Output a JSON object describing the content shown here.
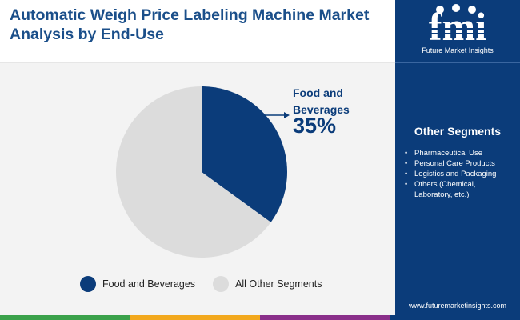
{
  "header": {
    "title": "Automatic Weigh Price Labeling Machine Market Analysis by End-Use"
  },
  "brand": {
    "logo_letters": "fmi",
    "name": "Future Market Insights",
    "website": "www.futuremarketinsights.com"
  },
  "sidebar": {
    "title": "Other Segments",
    "items": [
      "Pharmaceutical Use",
      "Personal Care Products",
      "Logistics and Packaging",
      "Others (Chemical, Laboratory, etc.)"
    ]
  },
  "callout": {
    "label": "Food and Beverages",
    "value": "35%"
  },
  "colors": {
    "primary": "#0b3c7a",
    "secondary": "#dcdcdc",
    "title": "#1b4f8a",
    "bottom_bar": [
      "#3aa14a",
      "#f2a81d",
      "#8a2f8a",
      "#0b3c7a"
    ]
  },
  "chart_data": {
    "type": "pie",
    "series": [
      {
        "name": "Food and Beverages",
        "value": 35,
        "color": "#0b3c7a"
      },
      {
        "name": "All Other Segments",
        "value": 65,
        "color": "#dcdcdc"
      }
    ],
    "legend_position": "bottom"
  }
}
